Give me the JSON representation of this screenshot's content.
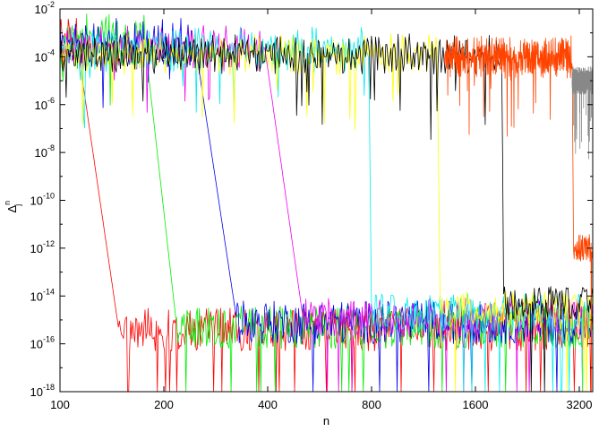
{
  "chart_data": {
    "type": "line",
    "title": "",
    "xlabel": "n",
    "ylabel": {
      "base": "Δ",
      "superscript": "n",
      "subscript": "j"
    },
    "x_scale": "log2",
    "y_scale": "log10",
    "xlim": [
      100,
      3500
    ],
    "ylim_exponent": [
      -18,
      -2
    ],
    "grid": false,
    "legend": "none",
    "x_ticks": [
      {
        "value": 100,
        "label": "100"
      },
      {
        "value": 200,
        "label": "200"
      },
      {
        "value": 400,
        "label": "400"
      },
      {
        "value": 800,
        "label": "800"
      },
      {
        "value": 1600,
        "label": "1600"
      },
      {
        "value": 3200,
        "label": "3200"
      }
    ],
    "y_ticks": [
      {
        "exponent": -2,
        "base": "10",
        "sup": "-2"
      },
      {
        "exponent": -4,
        "base": "10",
        "sup": "-4"
      },
      {
        "exponent": -6,
        "base": "10",
        "sup": "-6"
      },
      {
        "exponent": -8,
        "base": "10",
        "sup": "-8"
      },
      {
        "exponent": -10,
        "base": "10",
        "sup": "-10"
      },
      {
        "exponent": -12,
        "base": "10",
        "sup": "-12"
      },
      {
        "exponent": -14,
        "base": "10",
        "sup": "-14"
      },
      {
        "exponent": -16,
        "base": "10",
        "sup": "-16"
      },
      {
        "exponent": -18,
        "base": "10",
        "sup": "-18"
      }
    ],
    "series": [
      {
        "color": "#ff0000",
        "x_start": 100,
        "plateau_end": 112,
        "drop_end": 148,
        "upper_level_exp": -3.4,
        "floor_level_exp": -15.4,
        "upper_spread": 1.2,
        "floor_spread": 0.9
      },
      {
        "color": "#00ee00",
        "x_start": 100,
        "plateau_end": 176,
        "drop_end": 218,
        "upper_level_exp": -3.3,
        "floor_level_exp": -15.3,
        "upper_spread": 1.2,
        "floor_spread": 0.9
      },
      {
        "color": "#0000ee",
        "x_start": 100,
        "plateau_end": 246,
        "drop_end": 326,
        "upper_level_exp": -3.4,
        "floor_level_exp": -15.1,
        "upper_spread": 1.1,
        "floor_spread": 0.9
      },
      {
        "color": "#ee00ee",
        "x_start": 100,
        "plateau_end": 392,
        "drop_end": 506,
        "upper_level_exp": -3.6,
        "floor_level_exp": -14.9,
        "upper_spread": 1.0,
        "floor_spread": 0.8
      },
      {
        "color": "#00eeee",
        "x_start": 100,
        "plateau_end": 785,
        "drop_end": 800,
        "upper_level_exp": -3.7,
        "floor_level_exp": -14.7,
        "upper_spread": 1.0,
        "floor_spread": 0.8
      },
      {
        "color": "#ffff00",
        "x_start": 100,
        "plateau_end": 1240,
        "drop_end": 1265,
        "upper_level_exp": -3.9,
        "floor_level_exp": -14.6,
        "upper_spread": 0.9,
        "floor_spread": 0.8
      },
      {
        "color": "#000000",
        "x_start": 100,
        "plateau_end": 1910,
        "drop_end": 1930,
        "upper_level_exp": -3.9,
        "floor_level_exp": -14.3,
        "upper_spread": 0.9,
        "floor_spread": 0.7
      },
      {
        "color": "#ff4400",
        "x_start": 1300,
        "plateau_end": 3050,
        "drop_end": 3080,
        "upper_level_exp": -4.0,
        "floor_level_exp": -12.0,
        "upper_spread": 0.9,
        "floor_spread": 0.6
      },
      {
        "color": "#888888",
        "x_start": 3050,
        "plateau_end": 3500,
        "drop_end": 3500,
        "upper_level_exp": -5.0,
        "floor_level_exp": -5.0,
        "upper_spread": 0.6,
        "floor_spread": 0.6
      }
    ]
  }
}
